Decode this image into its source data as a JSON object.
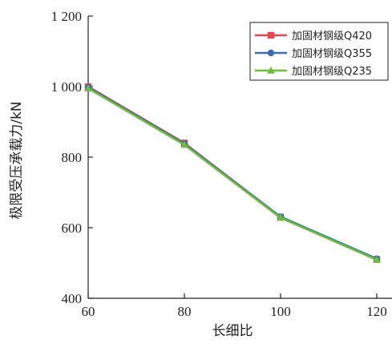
{
  "chart_data": {
    "type": "line",
    "title": "",
    "xlabel": "长细比",
    "ylabel": "极限受压承载力/kN",
    "x": [
      60,
      80,
      100,
      120
    ],
    "xticks": [
      60,
      80,
      100,
      120
    ],
    "yticks": [
      400,
      600,
      800,
      1000,
      1200
    ],
    "ytick_labels": [
      "400",
      "600",
      "800",
      "1 000",
      "1 200"
    ],
    "xlim": [
      60,
      120
    ],
    "ylim": [
      400,
      1200
    ],
    "grid": false,
    "legend_position": "top-right",
    "series": [
      {
        "name": "加固材钢级Q420",
        "values": [
          1000,
          840,
          630,
          510
        ],
        "color": "#e8474f",
        "marker": "square"
      },
      {
        "name": "加固材钢级Q355",
        "values": [
          998,
          838,
          631,
          512
        ],
        "color": "#3a6fb5",
        "marker": "circle"
      },
      {
        "name": "加固材钢级Q235",
        "values": [
          995,
          835,
          628,
          509
        ],
        "color": "#6cbf3a",
        "marker": "triangle"
      }
    ]
  }
}
